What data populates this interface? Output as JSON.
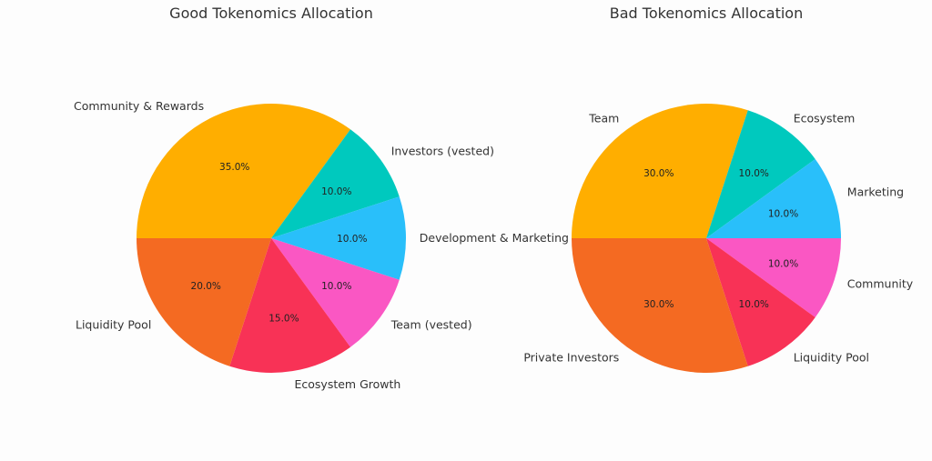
{
  "chart_data": [
    {
      "type": "pie",
      "title": "Good Tokenomics Allocation",
      "start_angle_deg": 180,
      "direction": "clockwise",
      "slices": [
        {
          "label": "Community & Rewards",
          "value": 35,
          "pct_text": "35.0%",
          "color": "#FFAE00"
        },
        {
          "label": "Investors (vested)",
          "value": 10,
          "pct_text": "10.0%",
          "color": "#00C9BE"
        },
        {
          "label": "Development & Marketing",
          "value": 10,
          "pct_text": "10.0%",
          "color": "#29BFFA"
        },
        {
          "label": "Team (vested)",
          "value": 10,
          "pct_text": "10.0%",
          "color": "#FA57C3"
        },
        {
          "label": "Ecosystem Growth",
          "value": 15,
          "pct_text": "15.0%",
          "color": "#F83256"
        },
        {
          "label": "Liquidity Pool",
          "value": 20,
          "pct_text": "20.0%",
          "color": "#F46A22"
        }
      ]
    },
    {
      "type": "pie",
      "title": "Bad Tokenomics Allocation",
      "start_angle_deg": 180,
      "direction": "clockwise",
      "slices": [
        {
          "label": "Team",
          "value": 30,
          "pct_text": "30.0%",
          "color": "#FFAE00"
        },
        {
          "label": "Ecosystem",
          "value": 10,
          "pct_text": "10.0%",
          "color": "#00C9BE"
        },
        {
          "label": "Marketing",
          "value": 10,
          "pct_text": "10.0%",
          "color": "#29BFFA"
        },
        {
          "label": "Community",
          "value": 10,
          "pct_text": "10.0%",
          "color": "#FA57C3"
        },
        {
          "label": "Liquidity Pool",
          "value": 10,
          "pct_text": "10.0%",
          "color": "#F83256"
        },
        {
          "label": "Private Investors",
          "value": 30,
          "pct_text": "30.0%",
          "color": "#F46A22"
        }
      ]
    }
  ]
}
